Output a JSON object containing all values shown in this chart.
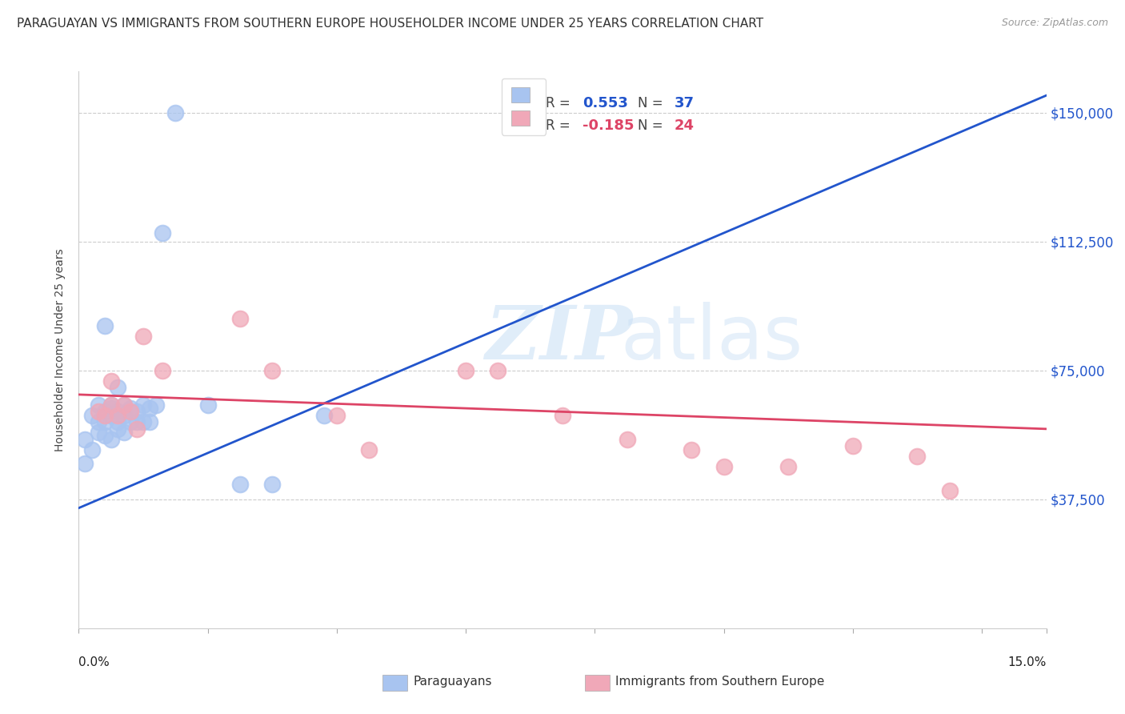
{
  "title": "PARAGUAYAN VS IMMIGRANTS FROM SOUTHERN EUROPE HOUSEHOLDER INCOME UNDER 25 YEARS CORRELATION CHART",
  "source": "Source: ZipAtlas.com",
  "ylabel": "Householder Income Under 25 years",
  "y_ticks": [
    37500,
    75000,
    112500,
    150000
  ],
  "y_tick_labels": [
    "$37,500",
    "$75,000",
    "$112,500",
    "$150,000"
  ],
  "xlim": [
    0.0,
    0.15
  ],
  "ylim": [
    0,
    162000
  ],
  "blue_R": "0.553",
  "blue_N": "37",
  "pink_R": "-0.185",
  "pink_N": "24",
  "blue_scatter_x": [
    0.001,
    0.001,
    0.002,
    0.002,
    0.003,
    0.003,
    0.003,
    0.004,
    0.004,
    0.004,
    0.004,
    0.005,
    0.005,
    0.005,
    0.005,
    0.006,
    0.006,
    0.006,
    0.006,
    0.007,
    0.007,
    0.007,
    0.008,
    0.008,
    0.009,
    0.009,
    0.01,
    0.01,
    0.011,
    0.011,
    0.012,
    0.013,
    0.015,
    0.02,
    0.025,
    0.03,
    0.038
  ],
  "blue_scatter_y": [
    48000,
    55000,
    52000,
    62000,
    57000,
    60000,
    65000,
    56000,
    60000,
    63000,
    88000,
    55000,
    62000,
    64000,
    65000,
    58000,
    60000,
    63000,
    70000,
    57000,
    62000,
    65000,
    60000,
    64000,
    60000,
    63000,
    60000,
    65000,
    60000,
    64000,
    65000,
    115000,
    150000,
    65000,
    42000,
    42000,
    62000
  ],
  "pink_scatter_x": [
    0.003,
    0.004,
    0.005,
    0.005,
    0.006,
    0.007,
    0.008,
    0.009,
    0.01,
    0.013,
    0.025,
    0.03,
    0.04,
    0.045,
    0.06,
    0.065,
    0.075,
    0.085,
    0.095,
    0.1,
    0.11,
    0.12,
    0.13,
    0.135
  ],
  "pink_scatter_y": [
    63000,
    62000,
    65000,
    72000,
    62000,
    65000,
    63000,
    58000,
    85000,
    75000,
    90000,
    75000,
    62000,
    52000,
    75000,
    75000,
    62000,
    55000,
    52000,
    47000,
    47000,
    53000,
    50000,
    40000
  ],
  "blue_line_x": [
    0.0,
    0.15
  ],
  "blue_line_y": [
    35000,
    155000
  ],
  "pink_line_x": [
    0.0,
    0.15
  ],
  "pink_line_y": [
    68000,
    58000
  ],
  "blue_color": "#a8c4f0",
  "pink_color": "#f0a8b8",
  "blue_line_color": "#2255cc",
  "pink_line_color": "#dd4466",
  "watermark_zip": "ZIP",
  "watermark_atlas": "atlas",
  "background_color": "#ffffff",
  "grid_color": "#cccccc",
  "title_fontsize": 11,
  "label_fontsize": 11,
  "tick_fontsize": 12
}
